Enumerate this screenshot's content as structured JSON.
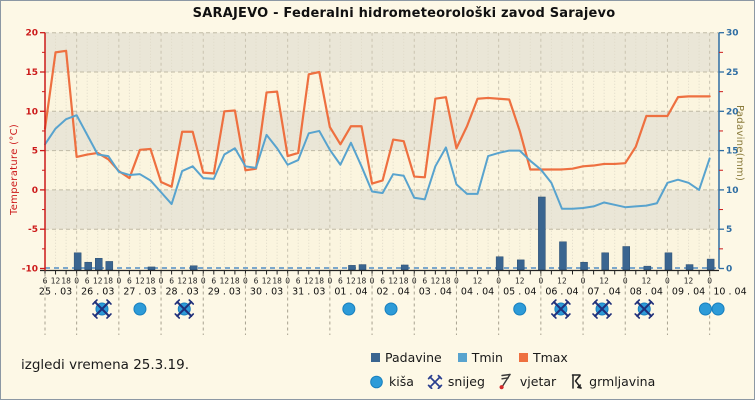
{
  "title": "SARAJEVO - Federalni hidrometeorološki zavod Sarajevo",
  "caption": "izgledi vremena 25.3.19.",
  "axes": {
    "left_label": "Temperature (°C)",
    "right_label": "Padavine(mm)",
    "left_ticks": [
      -10,
      -5,
      0,
      5,
      10,
      15,
      20
    ],
    "right_ticks": [
      0,
      5,
      10,
      15,
      20,
      25,
      30
    ]
  },
  "legend": {
    "padavine": "Padavine",
    "tmin": "Tmin",
    "tmax": "Tmax",
    "rain": "kiša",
    "snow": "snijeg",
    "wind": "vjetar",
    "thunder": "grmljavina"
  },
  "colors": {
    "tmax": "#EE7040",
    "tmin": "#58A3CE",
    "bars": "#3A6590",
    "rain": "#2D9BD8",
    "snow": "#20307A",
    "axis_left": "#CC1A1A",
    "axis_right": "#2E6DA3",
    "band_light": "#FBF5DF",
    "band_dark": "#EAE6D7",
    "page_bg": "#FDF8E6"
  },
  "chart_data": {
    "type": "line+bar",
    "title": "SARAJEVO - Federalni hidrometeorološki zavod Sarajevo",
    "x_start": "25.03. 06:00",
    "x_step_hours": 6,
    "x_end": "10.04. 00:00",
    "temp_axis_range": [
      -10,
      20
    ],
    "precip_axis_range": [
      0,
      30
    ],
    "hour_labels": [
      "6",
      "12",
      "18",
      "0",
      "6",
      "12",
      "18",
      "0",
      "6",
      "12",
      "18",
      "0",
      "6",
      "12",
      "18",
      "0",
      "6",
      "12",
      "18",
      "0",
      "6",
      "12",
      "18",
      "0",
      "6",
      "12",
      "18",
      "0",
      "6",
      "12",
      "18",
      "0",
      "6",
      "12",
      "18",
      "0",
      "6",
      "12",
      "18",
      "0",
      "",
      "12",
      "",
      "0",
      "",
      "12",
      "",
      "0",
      "",
      "12",
      "",
      "0",
      "",
      "12",
      "",
      "0",
      "",
      "12",
      "",
      "0",
      "",
      "12",
      "",
      "0"
    ],
    "day_labels": [
      {
        "k": 1,
        "label": "25 . 03"
      },
      {
        "k": 5,
        "label": "26 . 03"
      },
      {
        "k": 9,
        "label": "27 . 03"
      },
      {
        "k": 13,
        "label": "28 . 03"
      },
      {
        "k": 17,
        "label": "29 . 03"
      },
      {
        "k": 21,
        "label": "30 . 03"
      },
      {
        "k": 25,
        "label": "31 . 03"
      },
      {
        "k": 29,
        "label": "01 . 04"
      },
      {
        "k": 33,
        "label": "02 . 04"
      },
      {
        "k": 37,
        "label": "03 . 04"
      },
      {
        "k": 41,
        "label": "04 . 04"
      },
      {
        "k": 45,
        "label": "05 . 04"
      },
      {
        "k": 49,
        "label": "06 . 04"
      },
      {
        "k": 53,
        "label": "07 . 04"
      },
      {
        "k": 57,
        "label": "08 . 04"
      },
      {
        "k": 61,
        "label": "09 . 04"
      },
      {
        "k": 65,
        "label": "10 . 04"
      }
    ],
    "series": [
      {
        "name": "Tmax",
        "type": "line",
        "unit": "°C",
        "values": [
          7.8,
          17.5,
          17.7,
          4.2,
          4.5,
          4.7,
          3.9,
          2.4,
          1.5,
          5.1,
          5.2,
          1.0,
          0.4,
          7.4,
          7.4,
          2.2,
          2.1,
          10.0,
          10.1,
          2.5,
          2.7,
          12.4,
          12.5,
          4.3,
          4.7,
          14.7,
          15.0,
          8.0,
          5.8,
          8.1,
          8.1,
          0.8,
          1.2,
          6.4,
          6.2,
          1.7,
          1.6,
          11.6,
          11.8,
          5.3,
          8.1,
          11.6,
          11.7,
          11.6,
          11.5,
          7.5,
          2.6,
          2.6,
          2.6,
          2.6,
          2.7,
          3.0,
          3.1,
          3.3,
          3.3,
          3.4,
          5.5,
          9.4,
          9.4,
          9.4,
          11.8,
          11.9,
          11.9,
          11.9
        ]
      },
      {
        "name": "Tmin",
        "type": "line",
        "unit": "°C",
        "values": [
          5.8,
          7.8,
          9.0,
          9.5,
          7.0,
          4.5,
          4.3,
          2.3,
          1.9,
          2.0,
          1.2,
          -0.3,
          -1.8,
          2.4,
          3.0,
          1.5,
          1.4,
          4.5,
          5.3,
          3.0,
          2.8,
          7.0,
          5.3,
          3.2,
          3.8,
          7.2,
          7.5,
          5.1,
          3.2,
          6.0,
          3.0,
          -0.2,
          -0.4,
          2.0,
          1.8,
          -1.0,
          -1.2,
          3.0,
          5.4,
          0.7,
          -0.5,
          -0.5,
          4.3,
          4.7,
          5.0,
          5.0,
          3.7,
          2.6,
          0.9,
          -2.4,
          -2.4,
          -2.3,
          -2.1,
          -1.6,
          -1.9,
          -2.2,
          -2.1,
          -2.0,
          -1.7,
          0.9,
          1.3,
          0.9,
          0.0,
          4.0
        ]
      },
      {
        "name": "Padavine",
        "type": "bar",
        "unit": "mm",
        "points": [
          [
            3,
            2.0
          ],
          [
            4,
            0.8
          ],
          [
            5,
            1.3
          ],
          [
            6,
            0.9
          ],
          [
            10,
            0.2
          ],
          [
            14,
            0.35
          ],
          [
            29,
            0.4
          ],
          [
            30,
            0.5
          ],
          [
            34,
            0.45
          ],
          [
            43,
            1.5
          ],
          [
            45,
            1.1
          ],
          [
            47,
            9.1
          ],
          [
            49,
            3.4
          ],
          [
            51,
            0.8
          ],
          [
            53,
            2.0
          ],
          [
            55,
            2.8
          ],
          [
            57,
            0.3
          ],
          [
            59,
            2.0
          ],
          [
            61,
            0.5
          ],
          [
            63,
            1.2
          ]
        ]
      }
    ],
    "weather_symbols": [
      {
        "k": 5.4,
        "type": "rain_snow"
      },
      {
        "k": 9.0,
        "type": "rain"
      },
      {
        "k": 13.2,
        "type": "rain_snow"
      },
      {
        "k": 28.8,
        "type": "rain"
      },
      {
        "k": 32.8,
        "type": "rain"
      },
      {
        "k": 45.0,
        "type": "rain"
      },
      {
        "k": 48.9,
        "type": "rain_snow"
      },
      {
        "k": 52.8,
        "type": "rain_snow"
      },
      {
        "k": 56.8,
        "type": "rain_snow"
      },
      {
        "k": 62.6,
        "type": "rain"
      },
      {
        "k": 63.8,
        "type": "rain"
      }
    ],
    "legend_position": "bottom",
    "grid": true
  }
}
